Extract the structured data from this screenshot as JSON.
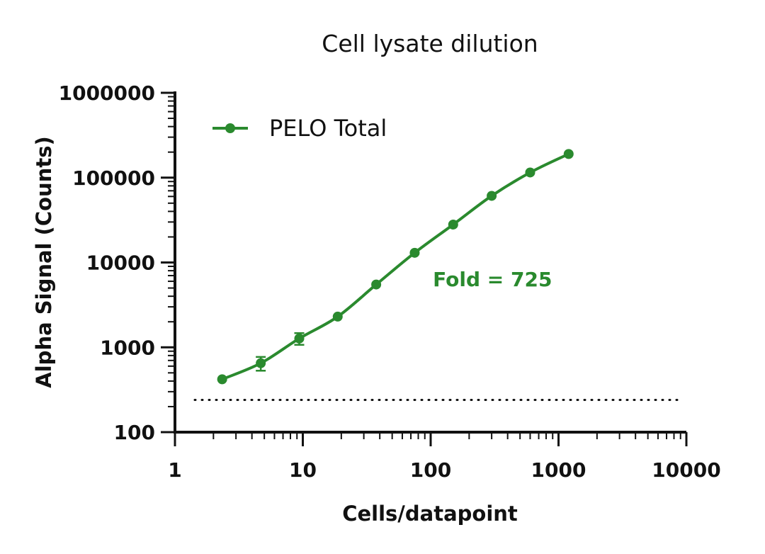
{
  "chart_data": {
    "type": "line",
    "title": "Cell lysate dilution",
    "xlabel": "Cells/datapoint",
    "ylabel": "Alpha Signal (Counts)",
    "x_scale": "log",
    "y_scale": "log",
    "xlim": [
      1,
      10000
    ],
    "ylim": [
      100,
      1000000
    ],
    "x_ticks": [
      1,
      10,
      100,
      1000,
      10000
    ],
    "x_tick_labels": [
      "1",
      "10",
      "100",
      "1000",
      "10000"
    ],
    "y_ticks": [
      100,
      1000,
      10000,
      100000,
      1000000
    ],
    "y_tick_labels": [
      "100",
      "1000",
      "10000",
      "100000",
      "1000000"
    ],
    "grid": false,
    "legend_position": "top-left",
    "colors": {
      "series": "#2a8a2e",
      "annotation": "#2a8a2e",
      "axis": "#111111"
    },
    "series": [
      {
        "name": "PELO Total",
        "x": [
          2.34,
          4.69,
          9.38,
          18.75,
          37.5,
          75,
          150,
          300,
          600,
          1200
        ],
        "y": [
          420,
          650,
          1270,
          2300,
          5500,
          13000,
          28000,
          61000,
          115000,
          190000
        ],
        "error": [
          40,
          120,
          200,
          150,
          300,
          600,
          1000,
          2000,
          4000,
          6000
        ]
      }
    ],
    "reference_line": {
      "style": "dotted",
      "y": 240
    },
    "annotations": [
      {
        "text": "Fold = 725",
        "x": 40,
        "y": 5800
      }
    ]
  }
}
